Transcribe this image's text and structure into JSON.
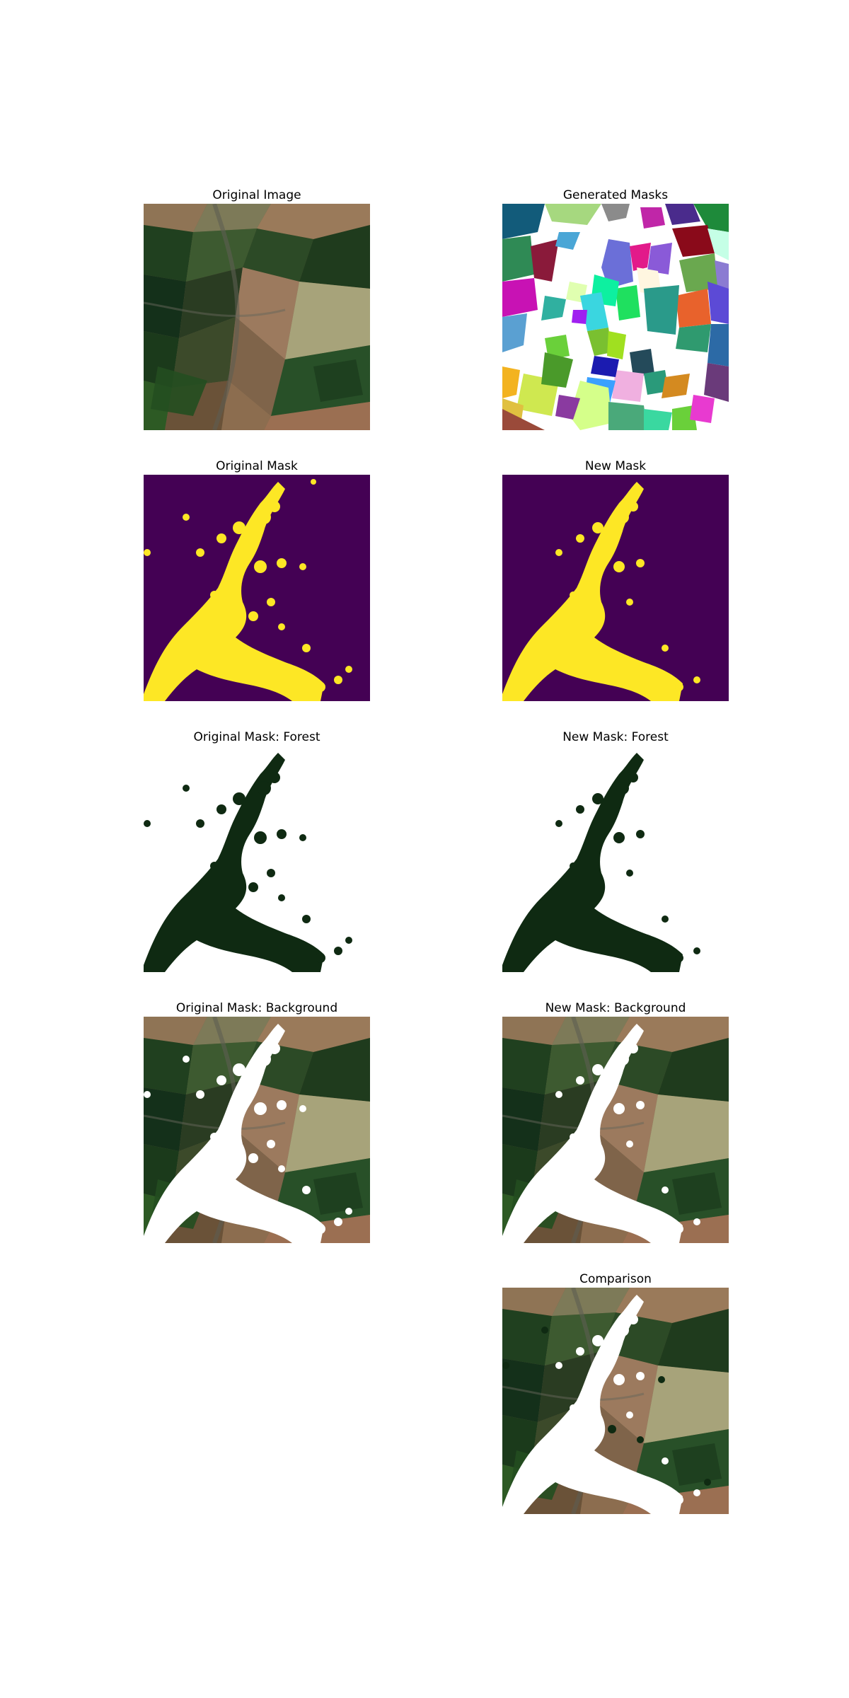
{
  "figure": {
    "panels": [
      {
        "key": "original_image",
        "title": "Original Image"
      },
      {
        "key": "generated_masks",
        "title": "Generated Masks"
      },
      {
        "key": "original_mask",
        "title": "Original Mask"
      },
      {
        "key": "new_mask",
        "title": "New Mask"
      },
      {
        "key": "original_mask_forest",
        "title": "Original Mask: Forest"
      },
      {
        "key": "new_mask_forest",
        "title": "New Mask: Forest"
      },
      {
        "key": "original_mask_background",
        "title": "Original Mask: Background"
      },
      {
        "key": "new_mask_background",
        "title": "New Mask: Background"
      },
      {
        "key": "comparison",
        "title": "Comparison"
      }
    ]
  },
  "colors": {
    "mask_background": "#440154",
    "mask_forest": "#fde725",
    "forest_overlay": "#0f2a12",
    "page_background": "#ffffff",
    "field_brown": "#8a6a4c",
    "field_dark_green": "#1e3b1c",
    "field_light": "#a8a47a"
  }
}
